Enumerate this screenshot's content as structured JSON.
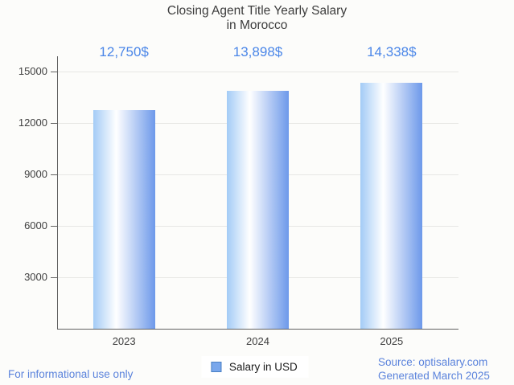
{
  "chart_data": {
    "type": "bar",
    "title": "Closing Agent Title Yearly Salary in Morocco",
    "title_lines": [
      "Closing Agent Title Yearly Salary",
      "in Morocco"
    ],
    "categories": [
      "2023",
      "2024",
      "2025"
    ],
    "series": [
      {
        "name": "Salary in USD",
        "values": [
          12750,
          13898,
          14338
        ]
      }
    ],
    "value_labels": [
      "12,750$",
      "13,898$",
      "14,338$"
    ],
    "ylim": [
      0,
      15000
    ],
    "yticks": [
      3000,
      6000,
      9000,
      12000,
      15000
    ],
    "grid": true,
    "legend_position": "bottom",
    "colors": {
      "bar_gradient_left": "#a3cbf6",
      "bar_gradient_mid": "#ffffff",
      "bar_gradient_right": "#6d99ea",
      "value_label": "#4a86e8",
      "axis_text": "#404040",
      "footer_blue": "#5b83dc",
      "legend_marker": "#79a7ec"
    },
    "footer_left": "For informational use only",
    "source_line1": "Source: optisalary.com",
    "source_line2": "Generated March 2025"
  }
}
